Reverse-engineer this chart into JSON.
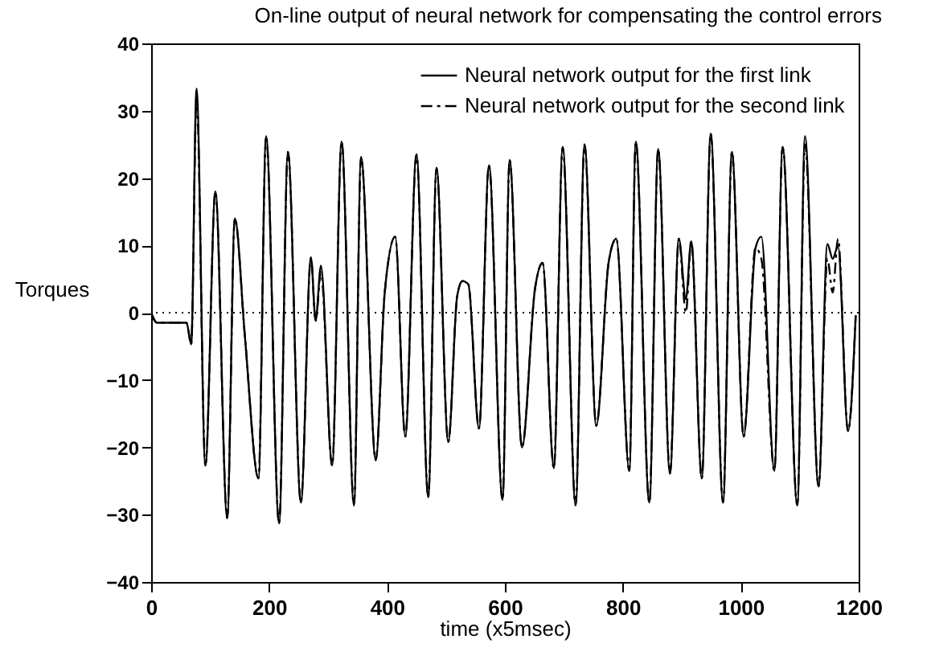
{
  "chart_data": {
    "type": "line",
    "title": "On-line output of neural network for compensating the control errors",
    "xlabel": "time (x5msec)",
    "ylabel": "Torques",
    "x": [
      0,
      10,
      60,
      68,
      77,
      92,
      109,
      129,
      142,
      159,
      182,
      195,
      217,
      232,
      254,
      271,
      279,
      288,
      307,
      323,
      344,
      356,
      381,
      396,
      414,
      431,
      450,
      470,
      484,
      504,
      519,
      528,
      538,
      556,
      573,
      596,
      608,
      629,
      651,
      664,
      683,
      698,
      720,
      735,
      755,
      776,
      789,
      811,
      822,
      845,
      860,
      880,
      895,
      907,
      916,
      934,
      949,
      970,
      985,
      1005,
      1025,
      1035,
      1057,
      1071,
      1096,
      1109,
      1132,
      1147,
      1156,
      1165,
      1182,
      1195
    ],
    "series": [
      {
        "name": "Neural network output for the first link",
        "color": "#000000",
        "line_style": "solid",
        "values": [
          0,
          -1.5,
          -1.5,
          -4.7,
          33.3,
          -22.7,
          18,
          -30.5,
          14,
          -3.5,
          -24.6,
          26.2,
          -31.3,
          23.9,
          -28.2,
          8.2,
          -1.2,
          7,
          -22.7,
          25.4,
          -28.6,
          23.1,
          -21.9,
          2.8,
          11.3,
          -18.4,
          23.5,
          -27.4,
          21.5,
          -19.2,
          2.4,
          4.7,
          4.2,
          -17.2,
          21.9,
          -27.8,
          22.7,
          -20,
          3.5,
          7.4,
          -23.1,
          24.6,
          -28.6,
          25,
          -16.8,
          7.5,
          11,
          -23.5,
          25.4,
          -28.2,
          24.3,
          -23.9,
          11,
          2,
          10.6,
          -24.6,
          26.6,
          -28.2,
          23.9,
          -18.4,
          9.6,
          11.3,
          -23.5,
          24.6,
          -28.6,
          26.2,
          -25.8,
          10.2,
          8,
          9.9,
          -17.6,
          -0.4
        ]
      },
      {
        "name": "Neural network output for the second link",
        "color": "#000000",
        "line_style": "dashed",
        "values": [
          0,
          -1.5,
          -1.5,
          -4.7,
          32,
          -22.7,
          18,
          -30.5,
          14,
          -3.5,
          -24.6,
          26.2,
          -31.3,
          23.9,
          -28.2,
          8.2,
          -1.2,
          6,
          -22.7,
          25.4,
          -28.6,
          23.1,
          -21.9,
          2.8,
          11.3,
          -18.4,
          23.5,
          -27.4,
          21.5,
          -19.2,
          2.4,
          4.7,
          4.2,
          -17.2,
          21.9,
          -27.8,
          22.7,
          -20,
          3.5,
          7.4,
          -23.1,
          24.6,
          -28.6,
          25,
          -16.8,
          7.5,
          11,
          -23.5,
          25.4,
          -28.2,
          24.3,
          -23.9,
          11,
          0,
          10.6,
          -24.6,
          26.6,
          -28.2,
          23.9,
          -18.4,
          9.6,
          8,
          -23.5,
          24.6,
          -28.6,
          25,
          -25.8,
          8,
          3,
          11,
          -17.6,
          -0.4
        ]
      }
    ],
    "xlim": [
      0,
      1200
    ],
    "xticks": [
      0,
      200,
      400,
      600,
      800,
      1000,
      1200
    ],
    "ylim": [
      -40,
      40
    ],
    "yticks": [
      -40,
      -30,
      -20,
      -10,
      0,
      10,
      20,
      30,
      40
    ],
    "ref_lines": [
      {
        "axis": "y",
        "value": 0,
        "line_style": "dotted",
        "color": "#000000"
      }
    ],
    "legend": "top right",
    "grid": false
  }
}
